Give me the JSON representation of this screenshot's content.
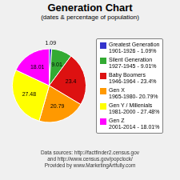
{
  "chart_data": {
    "type": "pie",
    "title": "Generation Chart",
    "subtitle": "(dates & percentage of population)",
    "categories": [
      "Greatest Generation\n1901-1926 - 1.09%",
      "Silent Generation\n1927-1945 - 9.01%",
      "Baby Boomers\n1946-1964 - 23.4%",
      "Gen X\n1965-1980- 20.79%",
      "Gen Y / Millenials\n1981-2000 - 27.48%",
      "Gen Z\n2001-2014 - 18.01%"
    ],
    "values": [
      1.09,
      9.01,
      23.4,
      20.79,
      27.48,
      18.01
    ],
    "colors": [
      "#3333cc",
      "#33aa33",
      "#dd1111",
      "#ff9900",
      "#ffff00",
      "#ff00ff"
    ],
    "data_labels": true,
    "legend": "right",
    "annotations": [
      "Data sources: http://factfinder2.census.gov",
      "and http://www.census.gov/popclock/",
      "Provided by www.MarketingArtfully.com"
    ]
  }
}
